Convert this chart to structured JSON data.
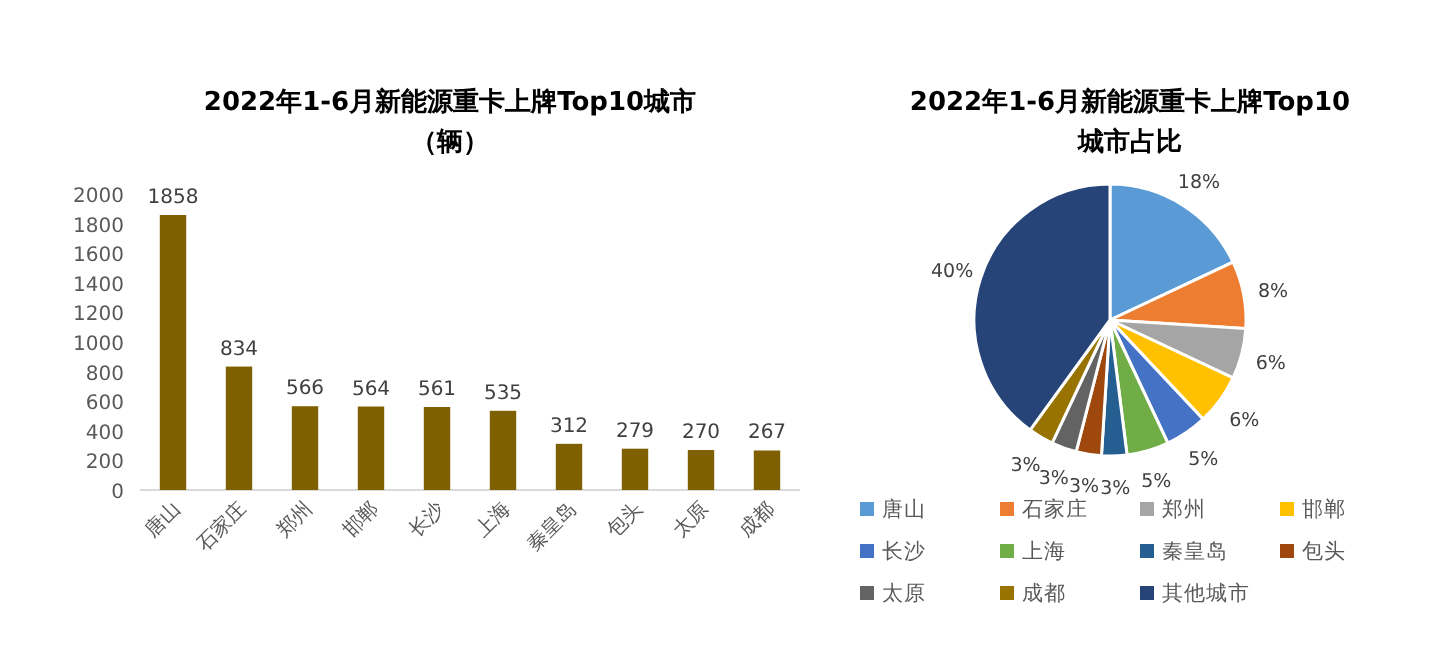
{
  "chart_data": [
    {
      "type": "bar",
      "title": "2022年1-6月新能源重卡上牌Top10城市",
      "subtitle": "（辆）",
      "categories": [
        "唐山",
        "石家庄",
        "郑州",
        "邯郸",
        "长沙",
        "上海",
        "秦皇岛",
        "包头",
        "太原",
        "成都"
      ],
      "values": [
        1858,
        834,
        566,
        564,
        561,
        535,
        312,
        279,
        270,
        267
      ],
      "color": "#7f6000",
      "ylim": [
        0,
        2000
      ],
      "yticks": [
        0,
        200,
        400,
        600,
        800,
        1000,
        1200,
        1400,
        1600,
        1800,
        2000
      ],
      "data_labels": true,
      "grid": false
    },
    {
      "type": "pie",
      "title": "2022年1-6月新能源重卡上牌Top10城市占比",
      "categories": [
        "唐山",
        "石家庄",
        "郑州",
        "邯郸",
        "长沙",
        "上海",
        "秦皇岛",
        "包头",
        "太原",
        "成都",
        "其他城市"
      ],
      "values": [
        18,
        8,
        6,
        6,
        5,
        5,
        3,
        3,
        3,
        3,
        40
      ],
      "value_labels": [
        "18%",
        "8%",
        "6%",
        "6%",
        "5%",
        "5%",
        "3%",
        "3%",
        "3%",
        "3%",
        "40%"
      ],
      "colors": [
        "#5b9bd5",
        "#ed7d31",
        "#a5a5a5",
        "#ffc000",
        "#4472c4",
        "#70ad47",
        "#255e91",
        "#9e480e",
        "#636363",
        "#997300",
        "#264478"
      ],
      "legend": "bottom"
    }
  ]
}
